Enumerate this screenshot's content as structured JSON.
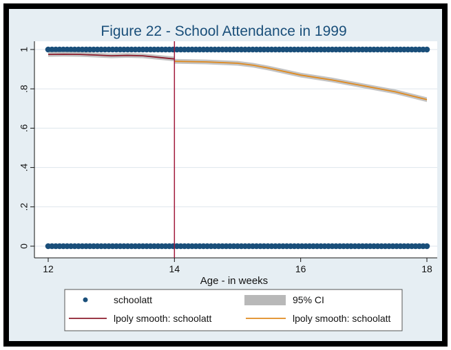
{
  "chart_data": {
    "type": "scatter",
    "title": "Figure 22 - School Attendance in 1999",
    "xlabel": "Age - in weeks",
    "ylabel": "",
    "xlim": [
      12,
      18
    ],
    "ylim": [
      0,
      1
    ],
    "x_ticks": [
      12,
      14,
      16,
      18
    ],
    "x_tick_labels": [
      "12",
      "14",
      "16",
      "18"
    ],
    "y_ticks": [
      0,
      0.2,
      0.4,
      0.6,
      0.8,
      1
    ],
    "y_tick_labels": [
      "0",
      ".2",
      ".4",
      ".6",
      ".8",
      "1"
    ],
    "grid": true,
    "cutoff_x": 14,
    "colors": {
      "points": "#1a4f7a",
      "smooth_left": "#8b1c2c",
      "smooth_right": "#e08a1e",
      "ci": "#b8b8b8",
      "cutoff": "#a0173a",
      "plot_bg": "#ffffff",
      "outer_bg": "#e6eef3",
      "grid": "#dde6ec"
    },
    "series": [
      {
        "name": "schoolatt",
        "kind": "points",
        "x_range": [
          12,
          18
        ],
        "y_values": [
          0,
          1
        ]
      },
      {
        "name": "lpoly smooth: schoolatt",
        "kind": "line-left",
        "x": [
          12,
          12.25,
          12.5,
          12.75,
          13,
          13.25,
          13.5,
          13.75,
          14
        ],
        "y": [
          0.975,
          0.976,
          0.975,
          0.972,
          0.968,
          0.97,
          0.968,
          0.96,
          0.952
        ]
      },
      {
        "name": "lpoly smooth: schoolatt",
        "kind": "line-right",
        "x": [
          14,
          14.5,
          15,
          15.25,
          15.5,
          16,
          16.5,
          17,
          17.5,
          18
        ],
        "y": [
          0.94,
          0.937,
          0.93,
          0.92,
          0.905,
          0.87,
          0.845,
          0.815,
          0.785,
          0.745
        ]
      },
      {
        "name": "95% CI",
        "kind": "ci",
        "halfwidth": 0.012
      }
    ],
    "legend": {
      "position": "bottom",
      "items": [
        {
          "label": "schoolatt",
          "symbol": "dot"
        },
        {
          "label": "95% CI",
          "symbol": "area"
        },
        {
          "label": "lpoly smooth: schoolatt",
          "symbol": "line-left"
        },
        {
          "label": "lpoly smooth: schoolatt",
          "symbol": "line-right"
        }
      ]
    }
  }
}
